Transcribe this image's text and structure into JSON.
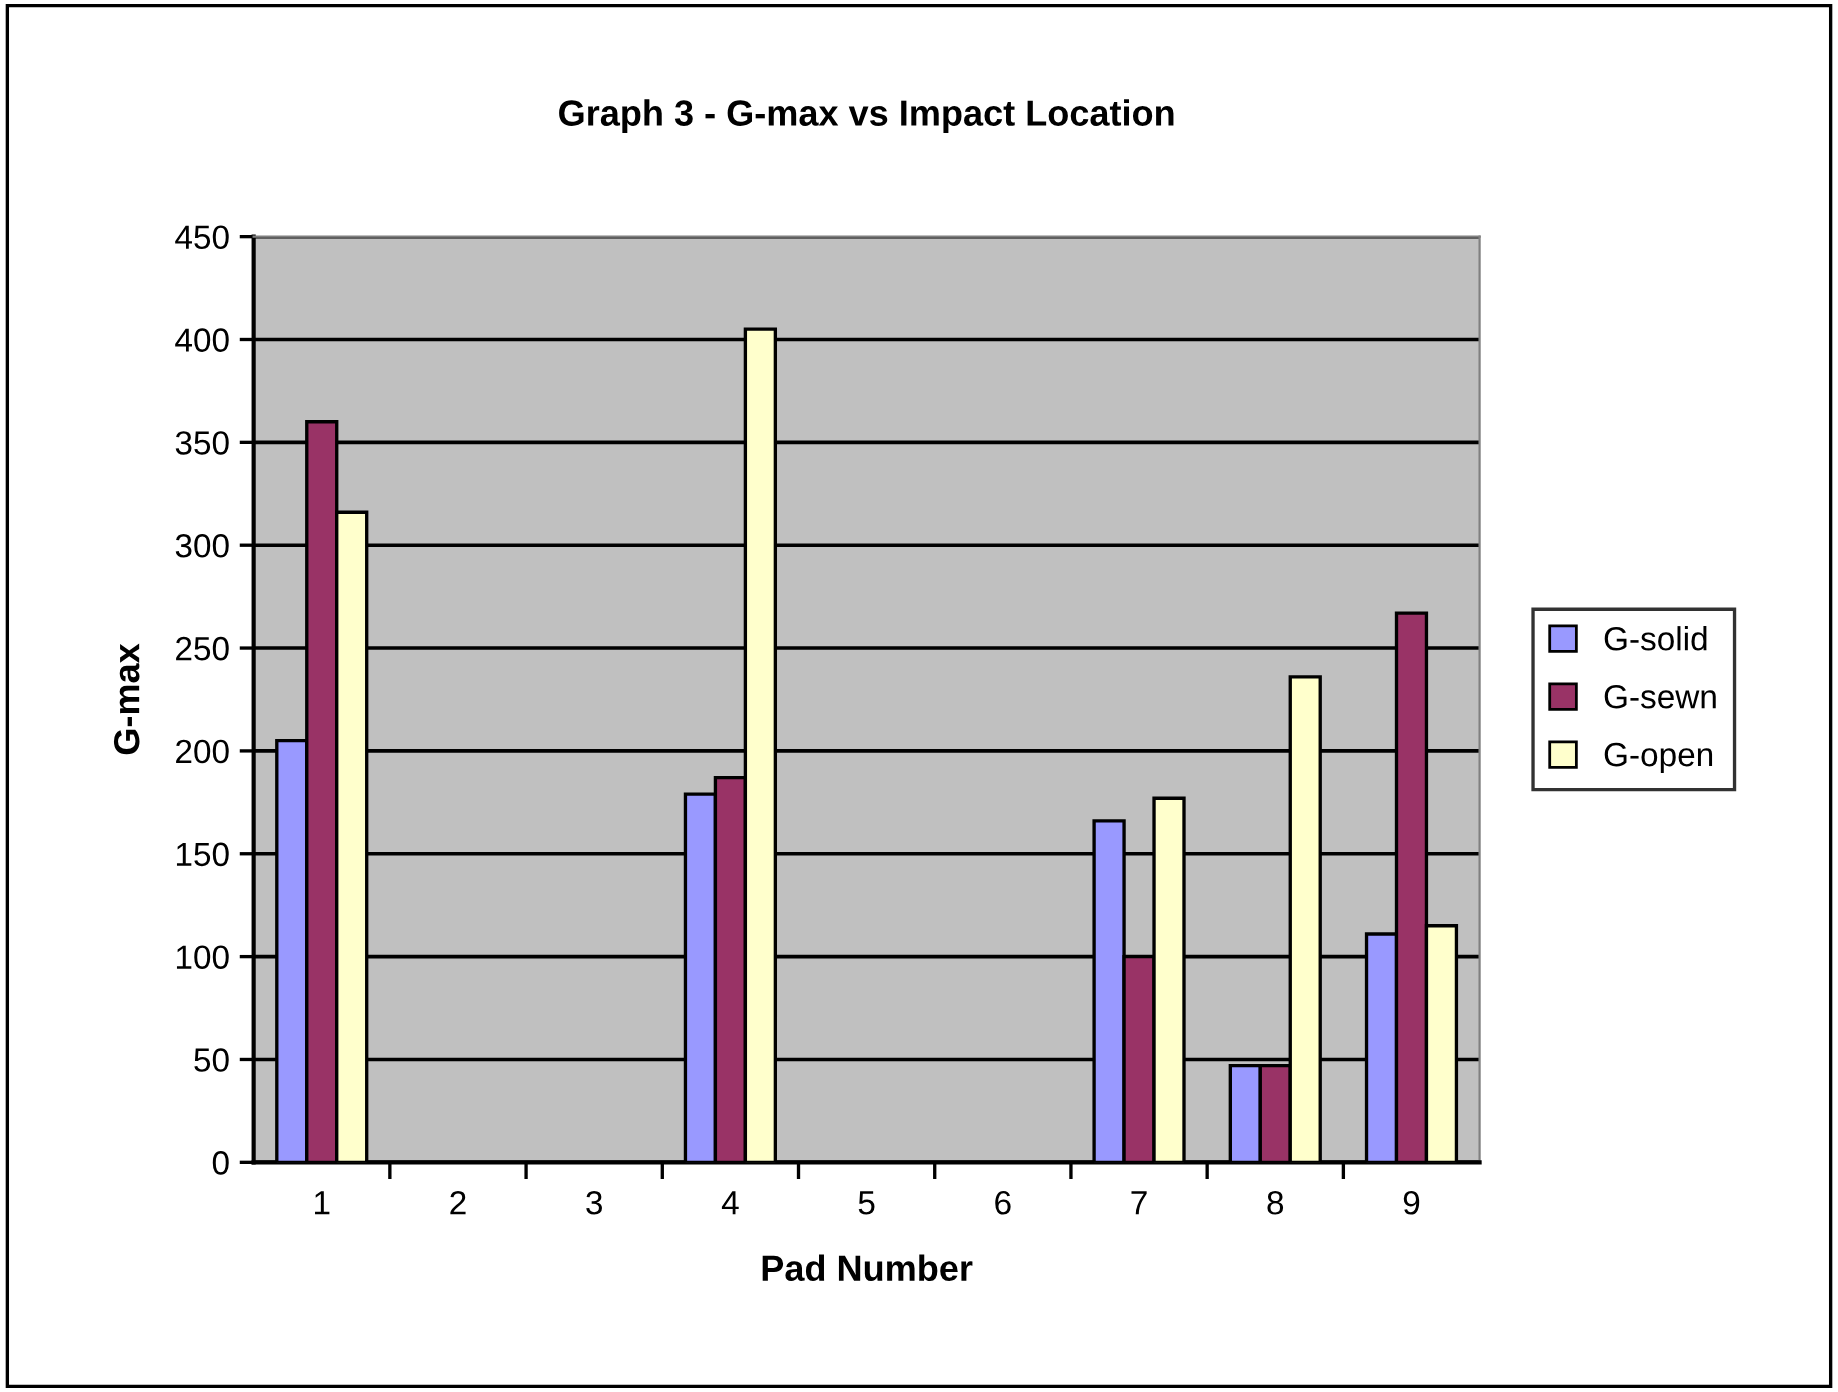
{
  "chart_data": {
    "type": "bar",
    "title": "Graph 3 - G-max vs Impact Location",
    "xlabel": "Pad Number",
    "ylabel": "G-max",
    "categories": [
      "1",
      "2",
      "3",
      "4",
      "5",
      "6",
      "7",
      "8",
      "9"
    ],
    "series": [
      {
        "name": "G-solid",
        "color": "#9999ff",
        "values": [
          205,
          null,
          null,
          179,
          null,
          null,
          166,
          47,
          111
        ]
      },
      {
        "name": "G-sewn",
        "color": "#993366",
        "values": [
          360,
          null,
          null,
          187,
          null,
          null,
          100,
          47,
          267
        ]
      },
      {
        "name": "G-open",
        "color": "#ffffcc",
        "values": [
          316,
          null,
          null,
          405,
          null,
          null,
          177,
          236,
          115
        ]
      }
    ],
    "ylim": [
      0,
      450
    ],
    "yticks": [
      0,
      50,
      100,
      150,
      200,
      250,
      300,
      350,
      400,
      450
    ],
    "grid": "y",
    "legend": "right"
  }
}
